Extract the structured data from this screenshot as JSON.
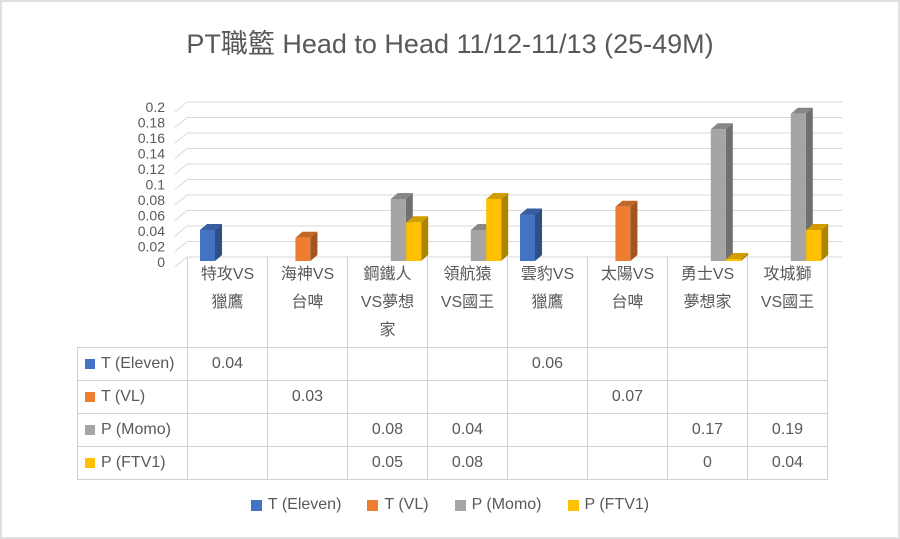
{
  "chart_data": {
    "type": "bar",
    "style": "3d-clustered-column",
    "title": "PT職籃 Head to Head 11/12-11/13 (25-49M)",
    "categories": [
      "特攻VS獵鷹",
      "海神VS台啤",
      "鋼鐵人VS夢想家",
      "領航猿VS國王",
      "雲豹VS獵鷹",
      "太陽VS台啤",
      "勇士VS夢想家",
      "攻城獅VS國王"
    ],
    "series": [
      {
        "name": "T (Eleven)",
        "color": "#4472C4",
        "values": [
          0.04,
          null,
          null,
          null,
          0.06,
          null,
          null,
          null
        ]
      },
      {
        "name": "T (VL)",
        "color": "#ED7D31",
        "values": [
          null,
          0.03,
          null,
          null,
          null,
          0.07,
          null,
          null
        ]
      },
      {
        "name": "P (Momo)",
        "color": "#A5A5A5",
        "values": [
          null,
          null,
          0.08,
          0.04,
          null,
          null,
          0.17,
          0.19
        ]
      },
      {
        "name": "P (FTV1)",
        "color": "#FFC000",
        "values": [
          null,
          null,
          0.05,
          0.08,
          null,
          null,
          0,
          0.04
        ]
      }
    ],
    "xlabel": "",
    "ylabel": "",
    "ylim": [
      0,
      0.2
    ],
    "yticks": [
      "0",
      "0.02",
      "0.04",
      "0.06",
      "0.08",
      "0.1",
      "0.12",
      "0.14",
      "0.16",
      "0.18",
      "0.2"
    ],
    "grid": true,
    "legend_position": "bottom",
    "data_table_shown": true,
    "colors": {
      "gridline": "#D9D9D9",
      "table_border": "#D0D0D0",
      "text": "#595959"
    }
  }
}
